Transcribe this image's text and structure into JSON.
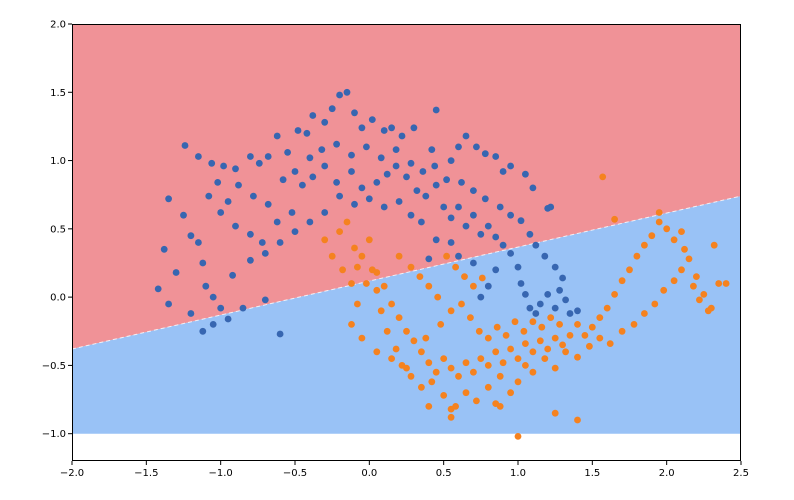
{
  "chart_data": {
    "type": "scatter",
    "title": "",
    "xlabel": "",
    "ylabel": "",
    "xlim": [
      -2.0,
      2.5
    ],
    "ylim": [
      -1.2,
      2.0
    ],
    "grid": false,
    "x_ticks": [
      -2.0,
      -1.5,
      -1.0,
      -0.5,
      0.0,
      0.5,
      1.0,
      1.5,
      2.0,
      2.5
    ],
    "y_ticks": [
      -1.0,
      -0.5,
      0.0,
      0.5,
      1.0,
      1.5,
      2.0
    ],
    "x_tick_labels": [
      "−2.0",
      "−1.5",
      "−1.0",
      "−0.5",
      "0.0",
      "0.5",
      "1.0",
      "1.5",
      "2.0",
      "2.5"
    ],
    "y_tick_labels": [
      "−1.0",
      "−0.5",
      "0.0",
      "0.5",
      "1.0",
      "1.5",
      "2.0"
    ],
    "background_regions": {
      "x_range": [
        -2.0,
        2.5
      ],
      "y_range": [
        -1.0,
        2.0
      ],
      "decision_boundary": {
        "x": [
          -2.0,
          2.5
        ],
        "y": [
          -0.38,
          0.74
        ]
      },
      "upper_color": "#f09297",
      "lower_color": "#99c2f6"
    },
    "series": [
      {
        "color": "#3766b1",
        "points": [
          [
            -1.24,
            1.11
          ],
          [
            -1.15,
            1.03
          ],
          [
            -1.06,
            0.98
          ],
          [
            -0.98,
            0.96
          ],
          [
            -0.9,
            0.94
          ],
          [
            -0.8,
            1.03
          ],
          [
            -0.74,
            0.98
          ],
          [
            -0.68,
            1.03
          ],
          [
            -0.62,
            1.18
          ],
          [
            -0.55,
            1.06
          ],
          [
            -0.48,
            1.22
          ],
          [
            -0.42,
            1.2
          ],
          [
            -0.38,
            1.33
          ],
          [
            -0.3,
            1.28
          ],
          [
            -0.25,
            1.38
          ],
          [
            -0.2,
            1.48
          ],
          [
            -0.15,
            1.5
          ],
          [
            -0.1,
            1.35
          ],
          [
            -0.05,
            1.24
          ],
          [
            0.02,
            1.3
          ],
          [
            0.1,
            1.22
          ],
          [
            0.15,
            1.24
          ],
          [
            0.22,
            1.18
          ],
          [
            0.3,
            1.24
          ],
          [
            0.42,
            1.08
          ],
          [
            0.45,
            1.37
          ],
          [
            0.55,
            1.0
          ],
          [
            0.6,
            1.1
          ],
          [
            0.65,
            1.18
          ],
          [
            0.72,
            1.1
          ],
          [
            0.78,
            1.05
          ],
          [
            0.85,
            1.03
          ],
          [
            0.9,
            0.92
          ],
          [
            0.95,
            0.96
          ],
          [
            1.05,
            0.9
          ],
          [
            1.1,
            0.8
          ],
          [
            1.2,
            0.65
          ],
          [
            1.22,
            0.66
          ],
          [
            -1.35,
            0.72
          ],
          [
            -1.25,
            0.6
          ],
          [
            -1.2,
            0.45
          ],
          [
            -1.15,
            0.4
          ],
          [
            -1.12,
            0.25
          ],
          [
            -1.1,
            0.08
          ],
          [
            -1.05,
            0.0
          ],
          [
            -1.0,
            -0.08
          ],
          [
            -0.95,
            -0.16
          ],
          [
            -0.85,
            -0.08
          ],
          [
            -0.7,
            -0.02
          ],
          [
            -0.6,
            -0.27
          ],
          [
            -1.3,
            0.18
          ],
          [
            -1.38,
            0.35
          ],
          [
            -1.42,
            0.06
          ],
          [
            -1.35,
            -0.05
          ],
          [
            -1.2,
            -0.12
          ],
          [
            -1.12,
            -0.25
          ],
          [
            -1.05,
            -0.2
          ],
          [
            -0.92,
            0.16
          ],
          [
            -0.8,
            0.27
          ],
          [
            -0.72,
            0.4
          ],
          [
            -0.62,
            0.55
          ],
          [
            -0.52,
            0.62
          ],
          [
            -0.45,
            0.82
          ],
          [
            -0.38,
            0.88
          ],
          [
            -0.3,
            0.96
          ],
          [
            -0.22,
            0.84
          ],
          [
            -0.12,
            0.92
          ],
          [
            -0.05,
            0.8
          ],
          [
            0.05,
            0.84
          ],
          [
            0.12,
            0.9
          ],
          [
            0.18,
            0.96
          ],
          [
            0.25,
            0.88
          ],
          [
            0.32,
            0.78
          ],
          [
            0.38,
            0.74
          ],
          [
            0.45,
            0.82
          ],
          [
            0.5,
            0.66
          ],
          [
            0.55,
            0.58
          ],
          [
            0.6,
            0.66
          ],
          [
            0.65,
            0.52
          ],
          [
            0.7,
            0.6
          ],
          [
            0.75,
            0.46
          ],
          [
            0.8,
            0.52
          ],
          [
            0.85,
            0.44
          ],
          [
            0.9,
            0.38
          ],
          [
            0.95,
            0.32
          ],
          [
            1.0,
            0.22
          ],
          [
            1.02,
            0.1
          ],
          [
            1.05,
            0.02
          ],
          [
            1.08,
            -0.08
          ],
          [
            1.12,
            -0.12
          ],
          [
            1.15,
            -0.05
          ],
          [
            1.2,
            0.02
          ],
          [
            1.25,
            -0.08
          ],
          [
            1.3,
            0.14
          ],
          [
            0.85,
            0.2
          ],
          [
            0.8,
            0.08
          ],
          [
            0.75,
            0.0
          ],
          [
            0.7,
            0.25
          ],
          [
            0.6,
            0.3
          ],
          [
            0.55,
            0.4
          ],
          [
            0.45,
            0.42
          ],
          [
            0.4,
            0.28
          ],
          [
            0.35,
            0.55
          ],
          [
            0.28,
            0.6
          ],
          [
            0.2,
            0.7
          ],
          [
            0.1,
            0.66
          ],
          [
            0.0,
            0.72
          ],
          [
            -0.1,
            0.68
          ],
          [
            -0.2,
            0.74
          ],
          [
            -0.3,
            0.62
          ],
          [
            -0.4,
            0.55
          ],
          [
            -0.5,
            0.48
          ],
          [
            -0.6,
            0.4
          ],
          [
            -0.7,
            0.32
          ],
          [
            -0.8,
            0.46
          ],
          [
            -0.9,
            0.52
          ],
          [
            -1.0,
            0.62
          ],
          [
            -1.08,
            0.74
          ],
          [
            -1.02,
            0.84
          ],
          [
            -0.95,
            0.7
          ],
          [
            -0.88,
            0.82
          ],
          [
            -0.78,
            0.74
          ],
          [
            -0.68,
            0.68
          ],
          [
            -0.58,
            0.86
          ],
          [
            -0.5,
            0.92
          ],
          [
            -0.4,
            1.02
          ],
          [
            -0.32,
            1.08
          ],
          [
            -0.22,
            1.12
          ],
          [
            -0.12,
            1.04
          ],
          [
            -0.02,
            1.1
          ],
          [
            0.08,
            1.02
          ],
          [
            0.18,
            1.08
          ],
          [
            0.28,
            0.98
          ],
          [
            0.36,
            0.92
          ],
          [
            0.44,
            0.96
          ],
          [
            0.52,
            0.86
          ],
          [
            0.62,
            0.84
          ],
          [
            0.7,
            0.78
          ],
          [
            0.78,
            0.72
          ],
          [
            0.88,
            0.66
          ],
          [
            0.95,
            0.6
          ],
          [
            1.02,
            0.56
          ],
          [
            1.08,
            0.46
          ],
          [
            1.12,
            0.38
          ],
          [
            1.18,
            0.3
          ],
          [
            1.25,
            0.22
          ],
          [
            1.28,
            0.05
          ],
          [
            1.32,
            -0.02
          ],
          [
            1.35,
            -0.12
          ],
          [
            1.4,
            -0.1
          ]
        ]
      },
      {
        "color": "#f5821f",
        "points": [
          [
            -0.2,
            0.48
          ],
          [
            -0.15,
            0.55
          ],
          [
            -0.1,
            0.36
          ],
          [
            -0.05,
            0.3
          ],
          [
            0.0,
            0.42
          ],
          [
            0.02,
            0.2
          ],
          [
            0.05,
            0.05
          ],
          [
            0.08,
            -0.1
          ],
          [
            0.12,
            -0.25
          ],
          [
            0.18,
            -0.38
          ],
          [
            0.22,
            -0.5
          ],
          [
            0.28,
            -0.58
          ],
          [
            0.35,
            -0.66
          ],
          [
            0.42,
            -0.62
          ],
          [
            0.5,
            -0.72
          ],
          [
            0.58,
            -0.8
          ],
          [
            0.65,
            -0.7
          ],
          [
            0.72,
            -0.76
          ],
          [
            0.8,
            -0.66
          ],
          [
            0.88,
            -0.58
          ],
          [
            0.95,
            -0.7
          ],
          [
            1.0,
            -0.62
          ],
          [
            1.05,
            -0.5
          ],
          [
            1.1,
            -0.55
          ],
          [
            1.18,
            -0.45
          ],
          [
            1.25,
            -0.52
          ],
          [
            1.32,
            -0.4
          ],
          [
            1.4,
            -0.44
          ],
          [
            1.48,
            -0.36
          ],
          [
            1.55,
            -0.3
          ],
          [
            1.62,
            -0.34
          ],
          [
            1.7,
            -0.25
          ],
          [
            1.78,
            -0.2
          ],
          [
            1.85,
            -0.12
          ],
          [
            1.92,
            -0.05
          ],
          [
            1.98,
            0.05
          ],
          [
            2.05,
            0.12
          ],
          [
            2.1,
            0.2
          ],
          [
            2.15,
            0.28
          ],
          [
            2.2,
            0.15
          ],
          [
            2.25,
            0.02
          ],
          [
            2.3,
            -0.08
          ],
          [
            2.35,
            0.1
          ],
          [
            2.28,
            -0.1
          ],
          [
            2.22,
            -0.02
          ],
          [
            2.18,
            0.08
          ],
          [
            2.12,
            0.35
          ],
          [
            2.05,
            0.42
          ],
          [
            2.0,
            0.5
          ],
          [
            1.95,
            0.55
          ],
          [
            1.9,
            0.45
          ],
          [
            1.85,
            0.38
          ],
          [
            1.8,
            0.3
          ],
          [
            1.75,
            0.2
          ],
          [
            1.7,
            0.12
          ],
          [
            1.65,
            0.02
          ],
          [
            1.6,
            -0.08
          ],
          [
            1.55,
            -0.15
          ],
          [
            1.5,
            -0.22
          ],
          [
            1.45,
            -0.28
          ],
          [
            1.4,
            -0.2
          ],
          [
            1.35,
            -0.28
          ],
          [
            1.3,
            -0.35
          ],
          [
            1.25,
            -0.3
          ],
          [
            1.2,
            -0.38
          ],
          [
            1.15,
            -0.32
          ],
          [
            1.1,
            -0.4
          ],
          [
            1.05,
            -0.34
          ],
          [
            1.0,
            -0.45
          ],
          [
            0.95,
            -0.38
          ],
          [
            0.9,
            -0.48
          ],
          [
            0.85,
            -0.4
          ],
          [
            0.8,
            -0.5
          ],
          [
            0.75,
            -0.45
          ],
          [
            0.7,
            -0.55
          ],
          [
            0.65,
            -0.48
          ],
          [
            0.6,
            -0.58
          ],
          [
            0.55,
            -0.52
          ],
          [
            0.5,
            -0.45
          ],
          [
            0.45,
            -0.55
          ],
          [
            0.4,
            -0.48
          ],
          [
            0.35,
            -0.4
          ],
          [
            0.3,
            -0.32
          ],
          [
            0.25,
            -0.25
          ],
          [
            0.2,
            -0.15
          ],
          [
            0.15,
            -0.05
          ],
          [
            0.1,
            0.08
          ],
          [
            0.05,
            0.18
          ],
          [
            -0.02,
            0.1
          ],
          [
            -0.08,
            -0.05
          ],
          [
            -0.12,
            -0.2
          ],
          [
            -0.05,
            -0.3
          ],
          [
            0.05,
            -0.4
          ],
          [
            0.15,
            -0.45
          ],
          [
            0.25,
            -0.52
          ],
          [
            0.38,
            -0.3
          ],
          [
            0.48,
            -0.2
          ],
          [
            0.55,
            -0.1
          ],
          [
            0.62,
            -0.05
          ],
          [
            0.68,
            -0.15
          ],
          [
            0.74,
            -0.25
          ],
          [
            0.8,
            -0.3
          ],
          [
            0.86,
            -0.22
          ],
          [
            0.92,
            -0.28
          ],
          [
            0.98,
            -0.18
          ],
          [
            1.04,
            -0.25
          ],
          [
            1.1,
            -0.18
          ],
          [
            1.16,
            -0.22
          ],
          [
            1.22,
            -0.15
          ],
          [
            1.28,
            -0.2
          ],
          [
            0.2,
            0.3
          ],
          [
            0.28,
            0.22
          ],
          [
            0.34,
            0.15
          ],
          [
            0.4,
            0.08
          ],
          [
            0.46,
            0.0
          ],
          [
            0.52,
            0.3
          ],
          [
            0.58,
            0.22
          ],
          [
            0.64,
            0.15
          ],
          [
            0.7,
            0.08
          ],
          [
            0.76,
            0.14
          ],
          [
            -0.25,
            0.3
          ],
          [
            -0.3,
            0.42
          ],
          [
            -0.18,
            0.2
          ],
          [
            -0.12,
            0.1
          ],
          [
            -0.08,
            0.22
          ],
          [
            1.57,
            0.88
          ],
          [
            1.65,
            0.57
          ],
          [
            1.95,
            0.62
          ],
          [
            2.1,
            0.48
          ],
          [
            2.32,
            0.38
          ],
          [
            2.4,
            0.1
          ],
          [
            0.4,
            -0.8
          ],
          [
            0.55,
            -0.82
          ],
          [
            0.85,
            -0.78
          ],
          [
            1.25,
            -0.85
          ],
          [
            1.4,
            -0.9
          ],
          [
            0.55,
            -0.88
          ],
          [
            0.88,
            -0.8
          ],
          [
            1.0,
            -1.02
          ]
        ]
      }
    ]
  }
}
